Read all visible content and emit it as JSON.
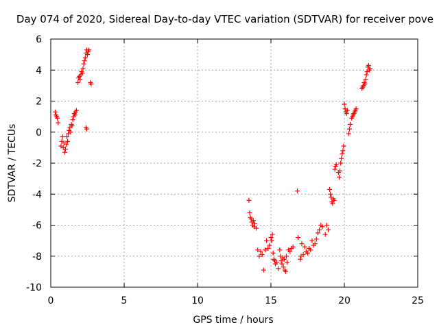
{
  "chart_data": {
    "type": "scatter",
    "title": "Day 074 of 2020, Sidereal Day-to-day VTEC variation (SDTVAR) for receiver pove",
    "xlabel": "GPS time / hours",
    "ylabel": "SDTVAR / TECUs",
    "xlim": [
      0,
      25
    ],
    "ylim": [
      -10,
      6
    ],
    "xticks": [
      0,
      5,
      10,
      15,
      20,
      25
    ],
    "yticks": [
      -10,
      -8,
      -6,
      -4,
      -2,
      0,
      2,
      4,
      6
    ],
    "grid": true,
    "marker": "+",
    "marker_color": "#ff0000",
    "series": [
      {
        "name": "SDTVAR",
        "x": [
          0.3,
          0.35,
          0.4,
          0.45,
          0.5,
          0.7,
          0.75,
          0.8,
          0.85,
          0.9,
          0.95,
          1.0,
          1.05,
          1.1,
          1.15,
          1.2,
          1.25,
          1.3,
          1.35,
          1.4,
          1.45,
          1.5,
          1.55,
          1.6,
          1.65,
          1.7,
          1.75,
          1.85,
          1.9,
          1.95,
          2.0,
          2.05,
          2.1,
          2.15,
          2.2,
          2.25,
          2.3,
          2.35,
          2.4,
          2.45,
          2.5,
          2.55,
          2.6,
          2.7,
          2.75,
          2.4,
          2.45,
          13.5,
          13.55,
          13.6,
          13.65,
          13.7,
          13.75,
          13.8,
          13.85,
          13.9,
          14.0,
          14.1,
          14.2,
          14.3,
          14.4,
          14.5,
          14.6,
          14.7,
          14.8,
          14.9,
          15.0,
          15.05,
          15.1,
          15.15,
          15.2,
          15.25,
          15.3,
          15.4,
          15.5,
          15.6,
          15.65,
          15.7,
          15.75,
          15.8,
          15.85,
          15.9,
          15.95,
          16.0,
          16.05,
          16.1,
          16.2,
          16.3,
          16.4,
          16.5,
          16.8,
          16.85,
          17.0,
          17.05,
          17.1,
          17.2,
          17.3,
          17.4,
          17.5,
          17.6,
          17.7,
          17.8,
          17.9,
          18.0,
          18.1,
          18.2,
          18.3,
          18.4,
          18.5,
          18.7,
          18.8,
          18.9,
          19.0,
          19.05,
          19.1,
          19.15,
          19.2,
          19.25,
          19.3,
          19.35,
          19.4,
          19.45,
          19.6,
          19.65,
          19.7,
          19.75,
          19.8,
          19.85,
          19.9,
          19.95,
          20.0,
          20.05,
          20.1,
          20.15,
          20.2,
          20.3,
          20.35,
          20.4,
          20.5,
          20.55,
          20.6,
          20.65,
          20.7,
          20.75,
          20.8,
          21.2,
          21.25,
          21.3,
          21.35,
          21.4,
          21.45,
          21.5,
          21.55,
          21.6,
          21.65,
          21.7,
          21.75
        ],
        "y": [
          1.3,
          1.1,
          1.0,
          0.9,
          0.6,
          -0.9,
          -0.6,
          -0.3,
          -1.0,
          -0.7,
          -1.3,
          -1.1,
          -0.8,
          -0.3,
          -0.6,
          -0.1,
          0.1,
          0.3,
          0.0,
          0.5,
          0.4,
          0.8,
          1.0,
          1.2,
          1.1,
          1.3,
          1.4,
          3.2,
          3.5,
          3.6,
          3.4,
          3.7,
          3.9,
          3.8,
          4.1,
          4.4,
          4.6,
          4.8,
          5.1,
          5.3,
          5.0,
          5.2,
          5.3,
          3.2,
          3.1,
          0.3,
          0.2,
          -4.4,
          -5.2,
          -5.5,
          -5.6,
          -5.8,
          -6.0,
          -5.7,
          -6.1,
          -5.9,
          -6.2,
          -7.6,
          -8.0,
          -7.7,
          -7.9,
          -8.9,
          -7.6,
          -7.0,
          -7.5,
          -7.3,
          -6.8,
          -7.0,
          -6.6,
          -7.8,
          -8.2,
          -8.3,
          -8.5,
          -8.4,
          -8.8,
          -7.6,
          -8.0,
          -8.3,
          -8.5,
          -8.1,
          -8.7,
          -8.2,
          -8.9,
          -9.0,
          -8.0,
          -8.4,
          -7.6,
          -7.7,
          -7.5,
          -7.4,
          -3.8,
          -6.8,
          -8.2,
          -8.0,
          -7.2,
          -7.9,
          -7.4,
          -7.7,
          -7.8,
          -7.5,
          -7.6,
          -7.0,
          -7.3,
          -7.2,
          -6.9,
          -6.5,
          -6.3,
          -6.0,
          -6.1,
          -6.6,
          -6.0,
          -6.3,
          -3.7,
          -4.0,
          -4.2,
          -4.5,
          -4.6,
          -4.3,
          -4.4,
          -2.4,
          -2.2,
          -2.1,
          -2.6,
          -2.9,
          -2.5,
          -2.0,
          -1.7,
          -1.4,
          -1.2,
          -0.9,
          1.8,
          1.5,
          1.3,
          1.2,
          1.4,
          -0.1,
          0.2,
          0.5,
          0.9,
          1.0,
          1.1,
          1.2,
          1.3,
          1.4,
          1.5,
          2.8,
          2.9,
          3.0,
          3.2,
          3.1,
          3.4,
          3.7,
          3.9,
          4.2,
          4.3,
          4.0,
          4.1
        ]
      }
    ]
  }
}
